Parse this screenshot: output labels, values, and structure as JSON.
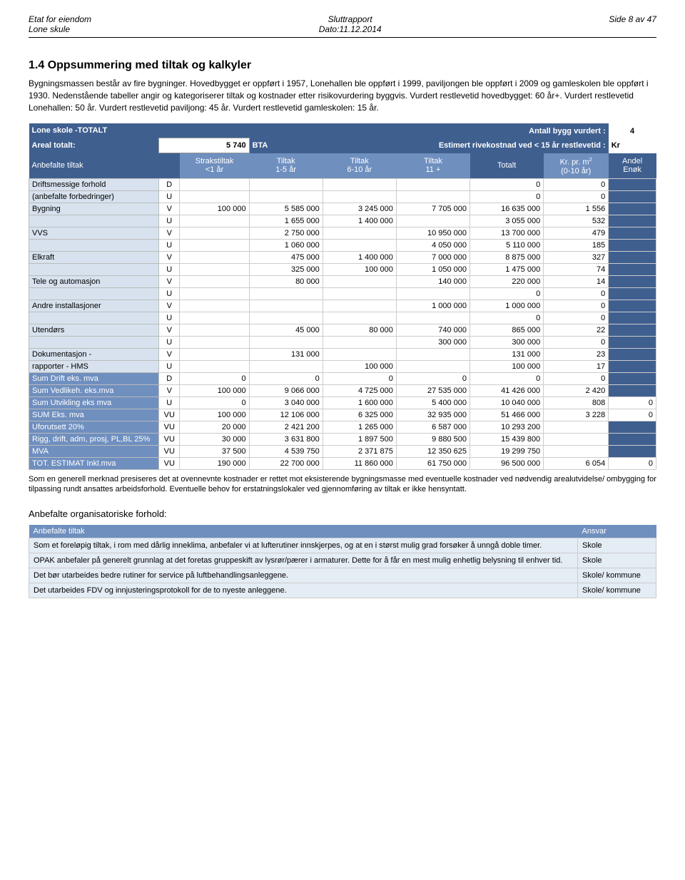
{
  "header": {
    "left1": "Etat for eiendom",
    "left2": "Lone skule",
    "center1": "Sluttrapport",
    "center2": "Dato:11.12.2014",
    "right1": "Side 8 av 47"
  },
  "section": {
    "title": "1.4 Oppsummering med tiltak og kalkyler",
    "para": "Bygningsmassen består av fire bygninger. Hovedbygget er oppført i 1957, Lonehallen ble oppført i 1999, paviljongen ble oppført i 2009 og gamleskolen ble oppført i 1930. Nedenstående tabeller angir og kategoriserer tiltak og kostnader etter risikovurdering byggvis. Vurdert restlevetid hovedbygget: 60 år+. Vurdert restlevetid Lonehallen: 50 år. Vurdert restlevetid paviljong: 45 år. Vurdert restlevetid gamleskolen: 15 år."
  },
  "top": {
    "name": "Lone skole -TOTALT",
    "antall_label": "Antall bygg vurdert :",
    "antall_val": "4",
    "areal_label": "Areal totalt:",
    "areal_val": "5 740",
    "bta": "BTA",
    "rive_label": "Estimert rivekostnad ved < 15 år restlevetid :",
    "rive_val": "Kr"
  },
  "cols": {
    "c0": "Anbefalte tiltak",
    "c1a": "Strakstiltak",
    "c1b": "<1 år",
    "c2a": "Tiltak",
    "c2b": "1-5 år",
    "c3a": "Tiltak",
    "c3b": "6-10 år",
    "c4a": "Tiltak",
    "c4b": "11 +",
    "c5": "Totalt",
    "c6a": "Kr. pr. m",
    "c6b": "(0-10 år)",
    "c7a": "Andel",
    "c7b": "Enøk"
  },
  "rows": [
    {
      "label": "Driftsmessige forhold",
      "code": "D",
      "c1": "",
      "c2": "",
      "c3": "",
      "c4": "",
      "c5": "0",
      "c6": "0",
      "c7": ""
    },
    {
      "label": "(anbefalte forbedringer)",
      "code": "U",
      "c1": "",
      "c2": "",
      "c3": "",
      "c4": "",
      "c5": "0",
      "c6": "0",
      "c7": ""
    },
    {
      "label": "Bygning",
      "code": "V",
      "c1": "100 000",
      "c2": "5 585 000",
      "c3": "3 245 000",
      "c4": "7 705 000",
      "c5": "16 635 000",
      "c6": "1 556",
      "c7": ""
    },
    {
      "label": "",
      "code": "U",
      "c1": "",
      "c2": "1 655 000",
      "c3": "1 400 000",
      "c4": "",
      "c5": "3 055 000",
      "c6": "532",
      "c7": ""
    },
    {
      "label": "VVS",
      "code": "V",
      "c1": "",
      "c2": "2 750 000",
      "c3": "",
      "c4": "10 950 000",
      "c5": "13 700 000",
      "c6": "479",
      "c7": ""
    },
    {
      "label": "",
      "code": "U",
      "c1": "",
      "c2": "1 060 000",
      "c3": "",
      "c4": "4 050 000",
      "c5": "5 110 000",
      "c6": "185",
      "c7": ""
    },
    {
      "label": "Elkraft",
      "code": "V",
      "c1": "",
      "c2": "475 000",
      "c3": "1 400 000",
      "c4": "7 000 000",
      "c5": "8 875 000",
      "c6": "327",
      "c7": ""
    },
    {
      "label": "",
      "code": "U",
      "c1": "",
      "c2": "325 000",
      "c3": "100 000",
      "c4": "1 050 000",
      "c5": "1 475 000",
      "c6": "74",
      "c7": ""
    },
    {
      "label": "Tele og automasjon",
      "code": "V",
      "c1": "",
      "c2": "80 000",
      "c3": "",
      "c4": "140 000",
      "c5": "220 000",
      "c6": "14",
      "c7": ""
    },
    {
      "label": "",
      "code": "U",
      "c1": "",
      "c2": "",
      "c3": "",
      "c4": "",
      "c5": "0",
      "c6": "0",
      "c7": ""
    },
    {
      "label": "Andre installasjoner",
      "code": "V",
      "c1": "",
      "c2": "",
      "c3": "",
      "c4": "1 000 000",
      "c5": "1 000 000",
      "c6": "0",
      "c7": ""
    },
    {
      "label": "",
      "code": "U",
      "c1": "",
      "c2": "",
      "c3": "",
      "c4": "",
      "c5": "0",
      "c6": "0",
      "c7": ""
    },
    {
      "label": "Utendørs",
      "code": "V",
      "c1": "",
      "c2": "45 000",
      "c3": "80 000",
      "c4": "740 000",
      "c5": "865 000",
      "c6": "22",
      "c7": ""
    },
    {
      "label": "",
      "code": "U",
      "c1": "",
      "c2": "",
      "c3": "",
      "c4": "300 000",
      "c5": "300 000",
      "c6": "0",
      "c7": ""
    },
    {
      "label": "Dokumentasjon -",
      "code": "V",
      "c1": "",
      "c2": "131 000",
      "c3": "",
      "c4": "",
      "c5": "131 000",
      "c6": "23",
      "c7": ""
    },
    {
      "label": "rapporter - HMS",
      "code": "U",
      "c1": "",
      "c2": "",
      "c3": "100 000",
      "c4": "",
      "c5": "100 000",
      "c6": "17",
      "c7": ""
    }
  ],
  "sums": [
    {
      "label": "Sum Drift eks. mva",
      "code": "D",
      "c1": "0",
      "c2": "0",
      "c3": "0",
      "c4": "0",
      "c5": "0",
      "c6": "0",
      "c7": ""
    },
    {
      "label": "Sum Vedlikeh. eks.mva",
      "code": "V",
      "c1": "100 000",
      "c2": "9 066 000",
      "c3": "4 725 000",
      "c4": "27 535 000",
      "c5": "41 426 000",
      "c6": "2 420",
      "c7": ""
    },
    {
      "label": "Sum Utvikling eks mva",
      "code": "U",
      "c1": "0",
      "c2": "3 040 000",
      "c3": "1 600 000",
      "c4": "5 400 000",
      "c5": "10 040 000",
      "c6": "808",
      "c7": "0"
    },
    {
      "label": "SUM Eks. mva",
      "code": "VU",
      "c1": "100 000",
      "c2": "12 106 000",
      "c3": "6 325 000",
      "c4": "32 935 000",
      "c5": "51 466 000",
      "c6": "3 228",
      "c7": "0"
    },
    {
      "label": "Uforutsett 20%",
      "code": "VU",
      "c1": "20 000",
      "c2": "2 421 200",
      "c3": "1 265 000",
      "c4": "6 587 000",
      "c5": "10 293 200",
      "c6": "",
      "c7": ""
    },
    {
      "label": "Rigg, drift, adm, prosj, PL,BL 25%",
      "code": "VU",
      "c1": "30 000",
      "c2": "3 631 800",
      "c3": "1 897 500",
      "c4": "9 880 500",
      "c5": "15 439 800",
      "c6": "",
      "c7": ""
    },
    {
      "label": "MVA",
      "code": "VU",
      "c1": "37 500",
      "c2": "4 539 750",
      "c3": "2 371 875",
      "c4": "12 350 625",
      "c5": "19 299 750",
      "c6": "",
      "c7": ""
    },
    {
      "label": "TOT. ESTIMAT Inkl.mva",
      "code": "VU",
      "c1": "190 000",
      "c2": "22 700 000",
      "c3": "11 860 000",
      "c4": "61 750 000",
      "c5": "96 500 000",
      "c6": "6 054",
      "c7": "0"
    }
  ],
  "footnote": "Som en generell merknad presiseres det at ovennevnte kostnader er rettet mot eksisterende bygningsmasse med eventuelle kostnader ved nødvendig arealutvidelse/ ombygging for tilpassing rundt ansattes arbeidsforhold. Eventuelle behov for erstatningslokaler ved gjennomføring av tiltak er ikke hensyntatt.",
  "org": {
    "heading": "Anbefalte organisatoriske forhold:",
    "col1": "Anbefalte tiltak",
    "col2": "Ansvar",
    "rows": [
      {
        "t": "Som et foreløpig tiltak, i rom med dårlig inneklima, anbefaler vi at lufterutiner innskjerpes, og at en i størst mulig grad forsøker å unngå doble timer.",
        "a": "Skole"
      },
      {
        "t": "OPAK anbefaler på generelt grunnlag at det foretas gruppeskift av lysrør/pærer i armaturer. Dette for å får en mest mulig enhetlig belysning til enhver tid.",
        "a": "Skole"
      },
      {
        "t": "Det bør utarbeides bedre rutiner for service på luftbehandlingsanleggene.",
        "a": "Skole/ kommune"
      },
      {
        "t": "Det utarbeides FDV og innjusteringsprotokoll for de to nyeste anleggene.",
        "a": "Skole/ kommune"
      }
    ]
  }
}
